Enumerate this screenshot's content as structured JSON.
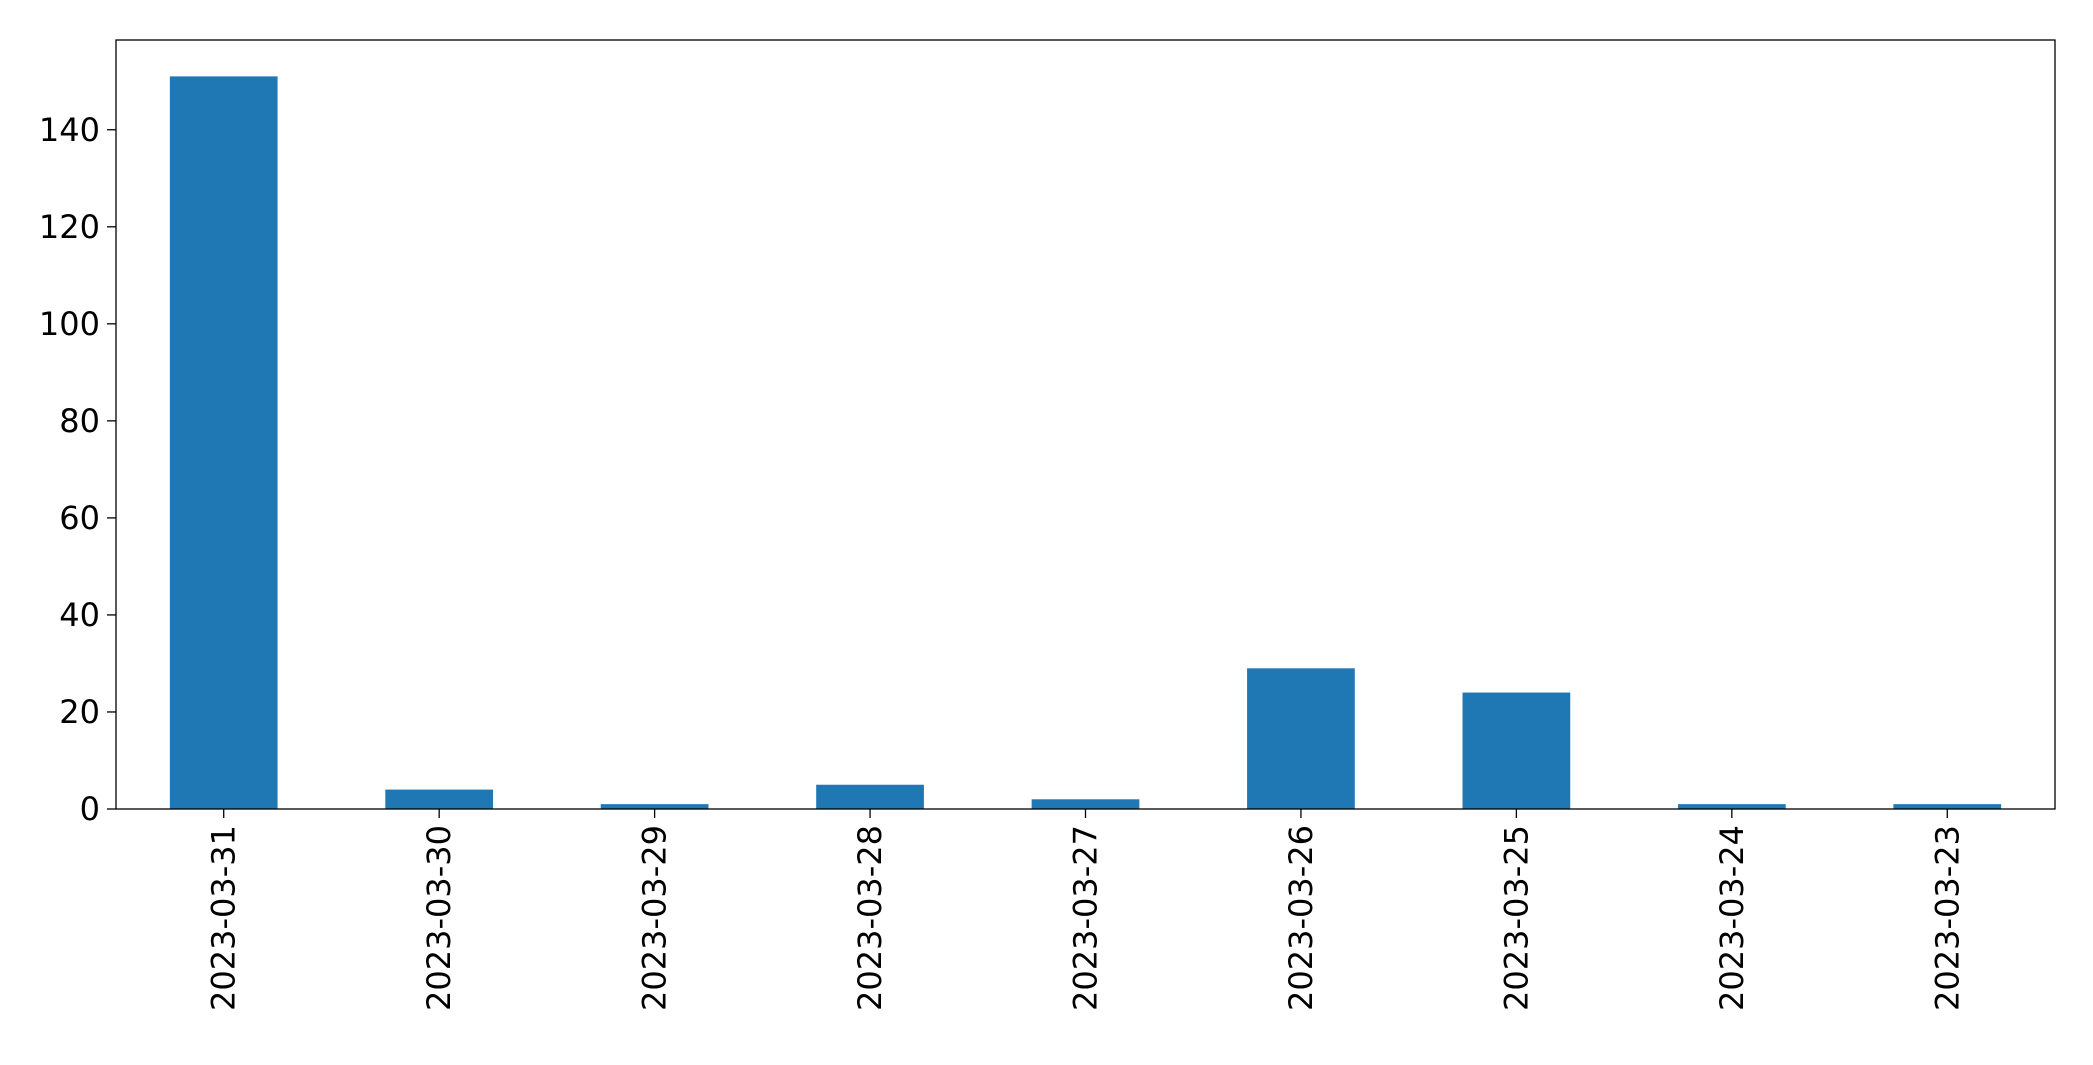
{
  "chart_data": {
    "type": "bar",
    "categories": [
      "2023-03-31",
      "2023-03-30",
      "2023-03-29",
      "2023-03-28",
      "2023-03-27",
      "2023-03-26",
      "2023-03-25",
      "2023-03-24",
      "2023-03-23"
    ],
    "values": [
      151,
      4,
      1,
      5,
      2,
      29,
      24,
      1,
      1
    ],
    "color": "#1f77b4",
    "ylim": [
      0,
      158.5
    ],
    "yticks": [
      0,
      20,
      40,
      60,
      80,
      100,
      120,
      140
    ],
    "grid": false
  }
}
